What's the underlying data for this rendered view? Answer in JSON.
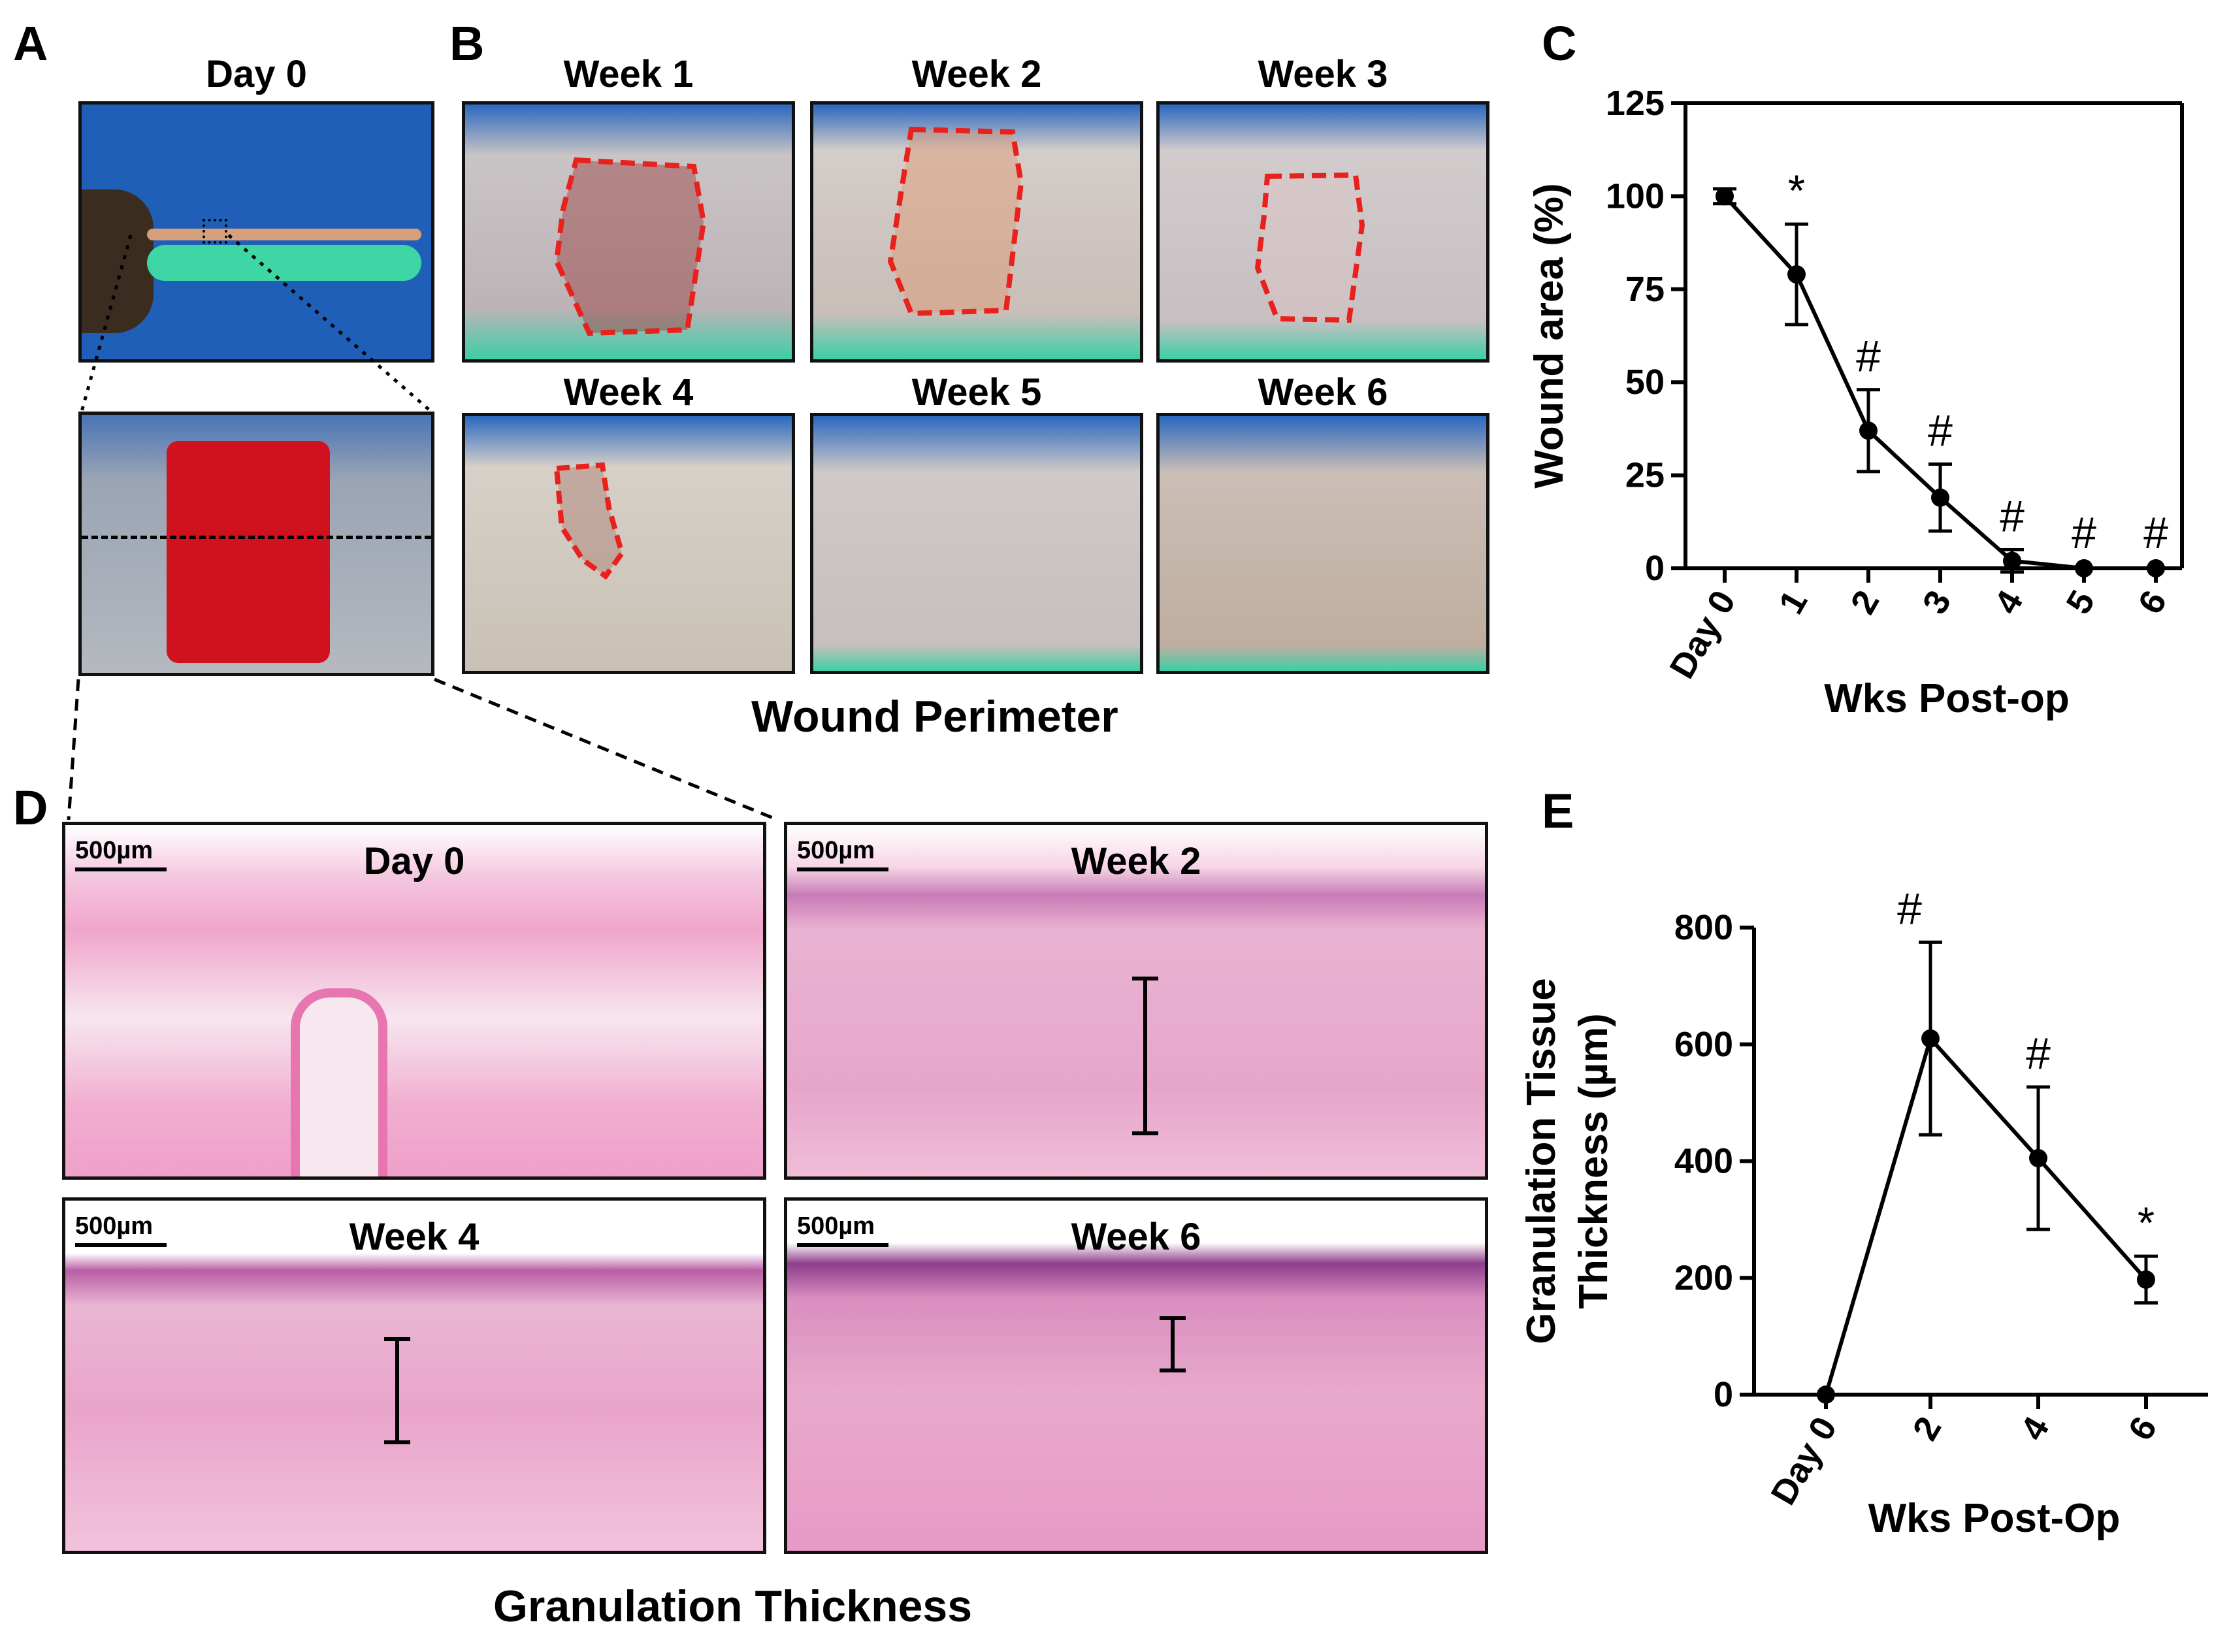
{
  "panels": {
    "a": {
      "letter": "A",
      "title": "Day 0"
    },
    "b": {
      "letter": "B",
      "titles": [
        "Week 1",
        "Week 2",
        "Week 3",
        "Week 4",
        "Week 5",
        "Week 6"
      ],
      "caption": "Wound Perimeter"
    },
    "c": {
      "letter": "C"
    },
    "d": {
      "letter": "D",
      "titles": [
        "Day 0",
        "Week 2",
        "Week 4",
        "Week 6"
      ],
      "scale": "500µm",
      "caption": "Granulation Thickness"
    },
    "e": {
      "letter": "E"
    }
  },
  "colors": {
    "wound_outline": "#e8211d",
    "tissue_pink": "#e9a2c8",
    "line": "#000000"
  },
  "chart_data": [
    {
      "type": "line",
      "panel": "C",
      "ylabel": "Wound area (%)",
      "xlabel": "Wks Post-op",
      "categories": [
        "Day 0",
        "1",
        "2",
        "3",
        "4",
        "5",
        "6"
      ],
      "values": [
        100,
        79,
        37,
        19,
        2,
        0,
        0
      ],
      "errors": [
        2,
        13.5,
        11,
        9,
        3,
        0.5,
        0.5
      ],
      "annotations": [
        "",
        "*",
        "#",
        "#",
        "#",
        "#",
        "#"
      ],
      "ylim": [
        0,
        125
      ],
      "yticks": [
        "0",
        "25",
        "50",
        "75",
        "100",
        "125"
      ]
    },
    {
      "type": "line",
      "panel": "E",
      "ylabel_lines": [
        "Granulation Tissue",
        "Thickness (µm)"
      ],
      "xlabel": "Wks Post-Op",
      "categories": [
        "Day 0",
        "2",
        "4",
        "6"
      ],
      "values": [
        0,
        610,
        405,
        197
      ],
      "errors": [
        0,
        165,
        122,
        40
      ],
      "annotations": [
        "",
        "#",
        "#",
        "*"
      ],
      "ylim": [
        0,
        800
      ],
      "yticks": [
        "0",
        "200",
        "400",
        "600",
        "800"
      ]
    }
  ]
}
